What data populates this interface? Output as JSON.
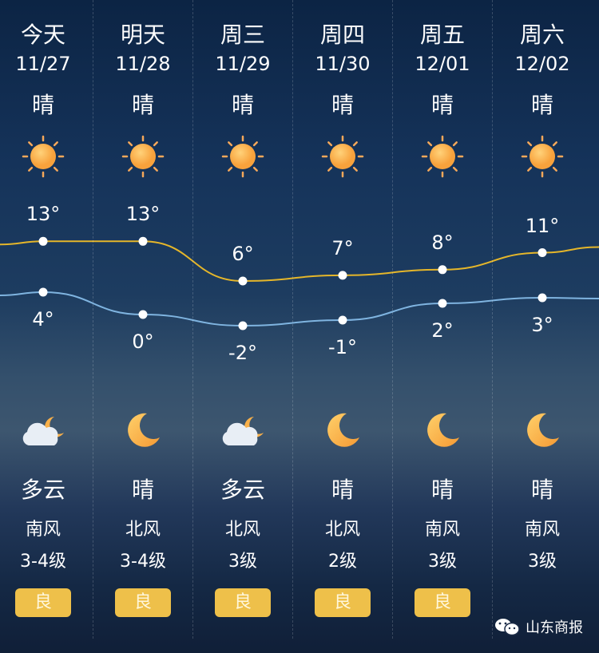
{
  "days": [
    {
      "label": "今天",
      "date": "11/27",
      "day_weather": "晴",
      "day_icon": "sun-icon",
      "high": 13,
      "low": 4,
      "night_icon": "cloud-moon-icon",
      "night_weather": "多云",
      "wind_dir": "南风",
      "wind_level": "3-4级",
      "aqi": "良"
    },
    {
      "label": "明天",
      "date": "11/28",
      "day_weather": "晴",
      "day_icon": "sun-icon",
      "high": 13,
      "low": 0,
      "night_icon": "moon-icon",
      "night_weather": "晴",
      "wind_dir": "北风",
      "wind_level": "3-4级",
      "aqi": "良"
    },
    {
      "label": "周三",
      "date": "11/29",
      "day_weather": "晴",
      "day_icon": "sun-icon",
      "high": 6,
      "low": -2,
      "night_icon": "cloud-moon-icon",
      "night_weather": "多云",
      "wind_dir": "北风",
      "wind_level": "3级",
      "aqi": "良"
    },
    {
      "label": "周四",
      "date": "11/30",
      "day_weather": "晴",
      "day_icon": "sun-icon",
      "high": 7,
      "low": -1,
      "night_icon": "moon-icon",
      "night_weather": "晴",
      "wind_dir": "北风",
      "wind_level": "2级",
      "aqi": "良"
    },
    {
      "label": "周五",
      "date": "12/01",
      "day_weather": "晴",
      "day_icon": "sun-icon",
      "high": 8,
      "low": 2,
      "night_icon": "moon-icon",
      "night_weather": "晴",
      "wind_dir": "南风",
      "wind_level": "3级",
      "aqi": "良"
    },
    {
      "label": "周六",
      "date": "12/02",
      "day_weather": "晴",
      "day_icon": "sun-icon",
      "high": 11,
      "low": 3,
      "night_icon": "moon-icon",
      "night_weather": "晴",
      "wind_dir": "南风",
      "wind_level": "3级",
      "aqi": null
    }
  ],
  "temp_labels": {
    "high": [
      "13°",
      "13°",
      "6°",
      "7°",
      "8°",
      "11°"
    ],
    "low": [
      "4°",
      "0°",
      "-2°",
      "-1°",
      "2°",
      "3°"
    ]
  },
  "colors": {
    "high_line": "#e5b62a",
    "low_line": "#7fb4e0",
    "aqi_good": "#eec04a"
  },
  "watermark": "山东商报"
}
